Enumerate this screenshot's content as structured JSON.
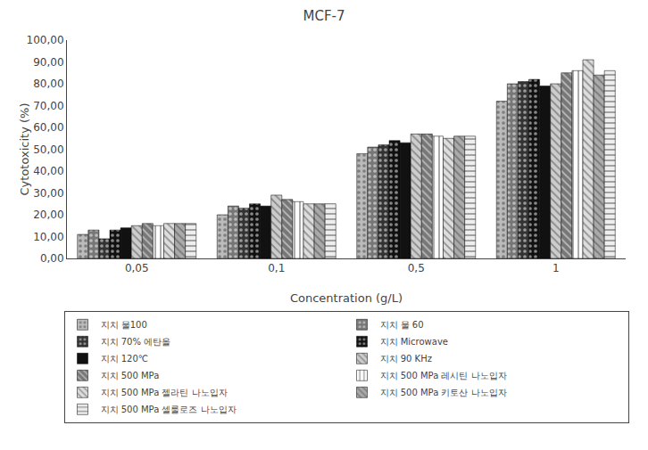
{
  "chart_data": {
    "type": "bar",
    "title": "MCF-7",
    "xlabel": "Concentration (g/L)",
    "ylabel": "Cytotoxicity (%)",
    "categories": [
      "0,05",
      "0,1",
      "0,5",
      "1"
    ],
    "series": [
      {
        "name": "지치 물100",
        "values": [
          11,
          20,
          48,
          72
        ],
        "color": "#bbbbbb",
        "marker": "dots"
      },
      {
        "name": "지치 물 60",
        "values": [
          13,
          24,
          51,
          80
        ],
        "color": "#777777",
        "marker": "dots"
      },
      {
        "name": "지치 70% 에탄올",
        "values": [
          9,
          23,
          52,
          81
        ],
        "color": "#333333",
        "marker": "dots"
      },
      {
        "name": "지치 Microwave",
        "values": [
          13,
          25,
          54,
          82
        ],
        "color": "#111111",
        "marker": "dots"
      },
      {
        "name": "지치 120℃",
        "values": [
          14,
          24,
          53,
          79
        ],
        "color": "#111111",
        "marker": "solid"
      },
      {
        "name": "지치 90 KHz",
        "values": [
          15,
          29,
          57,
          80
        ],
        "color": "#cccccc",
        "marker": "backslash"
      },
      {
        "name": "지치 500 MPa",
        "values": [
          16,
          27,
          57,
          85
        ],
        "color": "#777777",
        "marker": "backslash"
      },
      {
        "name": "지치 500 MPa 레시틴 나노입자",
        "values": [
          15,
          26,
          56,
          86
        ],
        "color": "#ffffff",
        "marker": "vertical"
      },
      {
        "name": "지치 500 MPa 젤라틴 나노입자",
        "values": [
          16,
          25,
          55,
          91
        ],
        "color": "#dddddd",
        "marker": "backslash"
      },
      {
        "name": "지치 500 MPa 키토산 나노입자",
        "values": [
          16,
          25,
          56,
          84
        ],
        "color": "#aaaaaa",
        "marker": "backslash"
      },
      {
        "name": "지치 500 MPa 셀룰로즈 나노입자",
        "values": [
          16,
          25,
          56,
          86
        ],
        "color": "#eeeeee",
        "marker": "horizontal"
      }
    ],
    "ylim": [
      0,
      100
    ],
    "yticks": [
      {
        "value": 0,
        "label": "0,00"
      },
      {
        "value": 10,
        "label": "10,00"
      },
      {
        "value": 20,
        "label": "20,00"
      },
      {
        "value": 30,
        "label": "30,00"
      },
      {
        "value": 40,
        "label": "40,00"
      },
      {
        "value": 50,
        "label": "50,00"
      },
      {
        "value": 60,
        "label": "60,00"
      },
      {
        "value": 70,
        "label": "70,00"
      },
      {
        "value": 80,
        "label": "80,00"
      },
      {
        "value": 90,
        "label": "90,00"
      },
      {
        "value": 100,
        "label": "100,00"
      }
    ],
    "grid": false,
    "legend": "bottom"
  }
}
